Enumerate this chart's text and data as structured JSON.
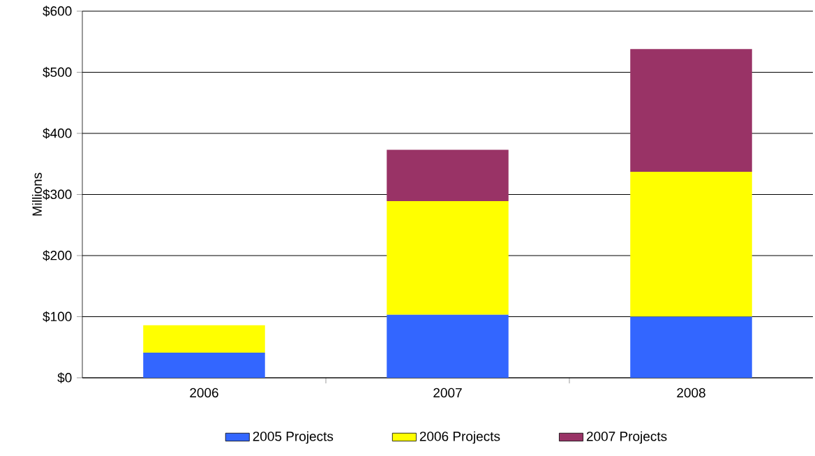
{
  "chart_data": {
    "type": "bar",
    "stacked": true,
    "ylabel": "Millions",
    "categories": [
      "2006",
      "2007",
      "2008"
    ],
    "series": [
      {
        "name": "2005 Projects",
        "color": "#3366ff",
        "values": [
          41,
          103,
          100
        ]
      },
      {
        "name": "2006 Projects",
        "color": "#ffff00",
        "values": [
          45,
          186,
          237
        ]
      },
      {
        "name": "2007 Projects",
        "color": "#993366",
        "values": [
          0,
          84,
          201
        ]
      }
    ],
    "ylim": [
      0,
      600
    ],
    "yticks": [
      {
        "value": 0,
        "label": "$0"
      },
      {
        "value": 100,
        "label": "$100"
      },
      {
        "value": 200,
        "label": "$200"
      },
      {
        "value": 300,
        "label": "$300"
      },
      {
        "value": 400,
        "label": "$400"
      },
      {
        "value": 500,
        "label": "$500"
      },
      {
        "value": 600,
        "label": "$600"
      }
    ],
    "grid": "y",
    "legend": "bottom"
  }
}
